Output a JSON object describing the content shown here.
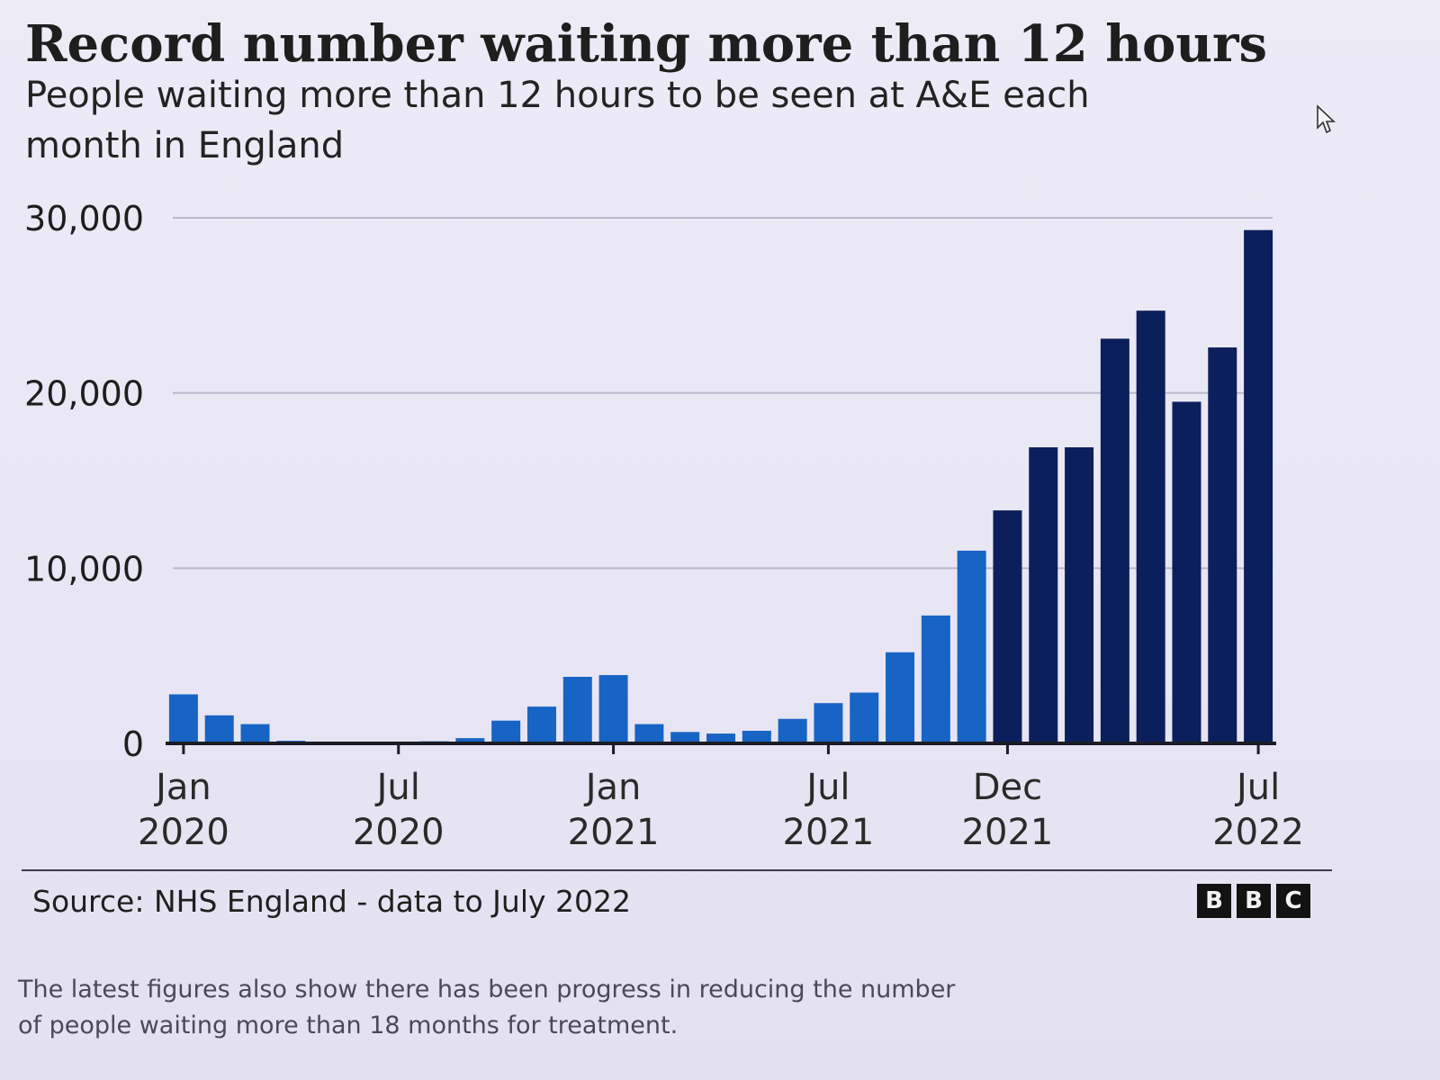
{
  "header": {
    "title": "Record number waiting more than 12 hours",
    "subtitle": "People waiting more than 12 hours to be seen at A&E each month in England"
  },
  "footer": {
    "source": "Source: NHS England - data to July 2022",
    "logo_letters": [
      "B",
      "B",
      "C"
    ]
  },
  "article": {
    "caption": "The latest figures also show there has been progress in reducing the number of people waiting more than 18 months for treatment."
  },
  "colors": {
    "bar_early": "#1764c4",
    "bar_late": "#0b1f5c",
    "gridline": "#b9b8cc",
    "axis": "#1c1c24",
    "text": "#1e1e1e"
  },
  "chart_data": {
    "type": "bar",
    "title": "Record number waiting more than 12 hours",
    "subtitle": "People waiting more than 12 hours to be seen at A&E each month in England",
    "x": [
      "2020-01",
      "2020-02",
      "2020-03",
      "2020-04",
      "2020-05",
      "2020-06",
      "2020-07",
      "2020-08",
      "2020-09",
      "2020-10",
      "2020-11",
      "2020-12",
      "2021-01",
      "2021-02",
      "2021-03",
      "2021-04",
      "2021-05",
      "2021-06",
      "2021-07",
      "2021-08",
      "2021-09",
      "2021-10",
      "2021-11",
      "2021-12",
      "2022-01",
      "2022-02",
      "2022-03",
      "2022-04",
      "2022-05",
      "2022-06",
      "2022-07"
    ],
    "values": [
      2800,
      1600,
      1100,
      150,
      50,
      40,
      60,
      120,
      300,
      1300,
      2100,
      3800,
      3900,
      1100,
      650,
      560,
      720,
      1400,
      2300,
      2900,
      5200,
      7300,
      11000,
      13300,
      16900,
      16900,
      23100,
      24700,
      19500,
      22600,
      29300
    ],
    "x_tick_labels": [
      {
        "month": "Jan",
        "year": "2020",
        "at": "2020-01"
      },
      {
        "month": "Jul",
        "year": "2020",
        "at": "2020-07"
      },
      {
        "month": "Jan",
        "year": "2021",
        "at": "2021-01"
      },
      {
        "month": "Jul",
        "year": "2021",
        "at": "2021-07"
      },
      {
        "month": "Dec",
        "year": "2021",
        "at": "2021-12"
      },
      {
        "month": "Jul",
        "year": "2022",
        "at": "2022-07"
      }
    ],
    "y_ticks": [
      0,
      10000,
      20000,
      30000
    ],
    "y_tick_labels": [
      "0",
      "10,000",
      "20,000",
      "30,000"
    ],
    "ylim": [
      0,
      30000
    ],
    "xlabel": "",
    "ylabel": "",
    "grid": true,
    "legend": "none",
    "color_change_at": "2021-12"
  }
}
